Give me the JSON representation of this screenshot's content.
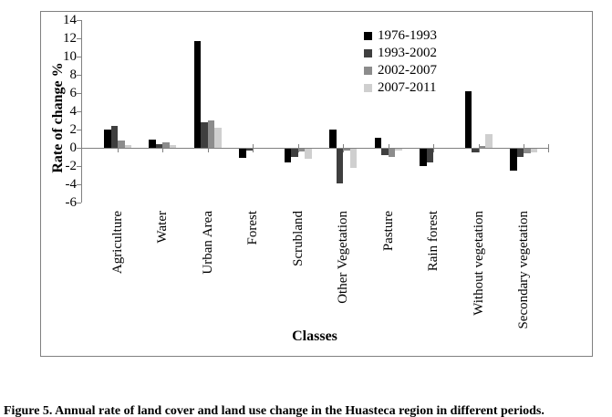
{
  "figure": {
    "caption": "Figure 5. Annual rate of land cover and land use change in the Huasteca region in different periods."
  },
  "chart_data": {
    "type": "bar",
    "title": "",
    "xlabel": "Classes",
    "ylabel": "Rate of change %",
    "ylim": [
      -6,
      14
    ],
    "yticks": [
      14,
      12,
      10,
      8,
      6,
      4,
      2,
      0,
      -2,
      -4,
      -6
    ],
    "grid": false,
    "legend_position": "top-right-inside",
    "axis_color": "#808080",
    "categories": [
      "Agriculture",
      "Water",
      "Urban Area",
      "Forest",
      "Scrubland",
      "Other Vegetation",
      "Pasture",
      "Rain forest",
      "Without vegetation",
      "Secondary vegetation"
    ],
    "series": [
      {
        "name": "1976-1993",
        "color": "#000000",
        "values": [
          2.0,
          0.9,
          11.7,
          -1.0,
          -1.5,
          2.0,
          1.1,
          -1.9,
          6.2,
          -2.4
        ]
      },
      {
        "name": "1993-2002",
        "color": "#3f3f3f",
        "values": [
          2.4,
          0.4,
          2.8,
          -0.2,
          -0.9,
          -3.8,
          -0.7,
          -1.5,
          -0.4,
          -0.9
        ]
      },
      {
        "name": "2002-2007",
        "color": "#8c8c8c",
        "values": [
          0.8,
          0.6,
          3.0,
          0.0,
          -0.3,
          -0.2,
          -0.9,
          0.0,
          0.2,
          -0.5
        ]
      },
      {
        "name": "2007-2011",
        "color": "#cfcfcf",
        "values": [
          0.3,
          0.3,
          2.2,
          0.0,
          -1.1,
          -2.1,
          -0.2,
          0.0,
          1.5,
          -0.4
        ]
      }
    ]
  }
}
